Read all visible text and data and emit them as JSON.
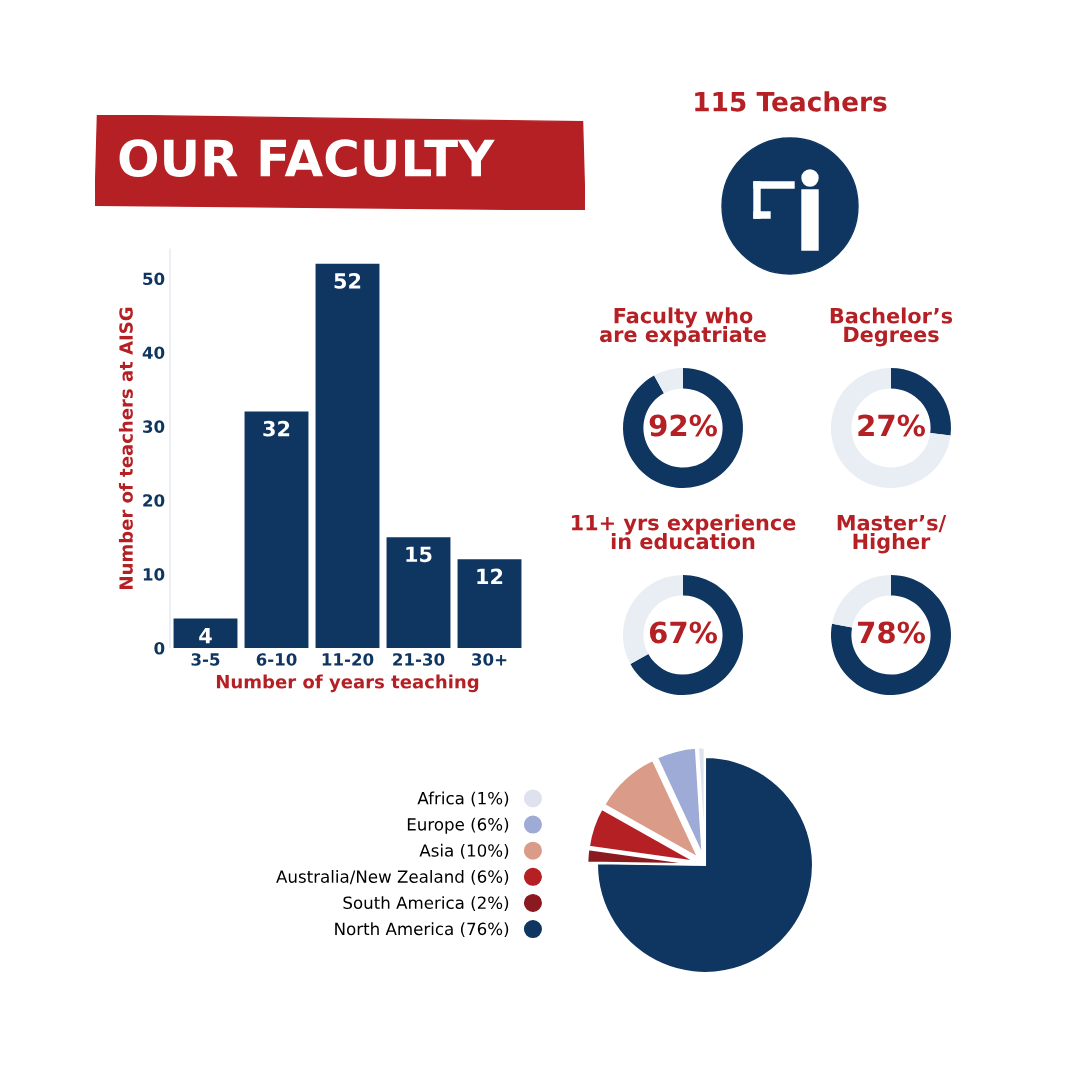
{
  "chart_data": [
    {
      "type": "bar",
      "title": "OUR FACULTY",
      "xlabel": "Number of years teaching",
      "ylabel": "Number of teachers at AISG",
      "categories": [
        "3-5",
        "6-10",
        "11-20",
        "21-30",
        "30+"
      ],
      "values": [
        4,
        32,
        52,
        15,
        12
      ],
      "color": "#0f3661",
      "ylim": [
        0,
        54
      ],
      "yticks": [
        0,
        10,
        20,
        30,
        40,
        50
      ],
      "data_labels": true,
      "grid": false,
      "legend": false
    },
    {
      "type": "other",
      "title": "115 Teachers"
    },
    {
      "type": "donut",
      "title": "Faculty who\nare expatriate",
      "categories": [
        null,
        null
      ],
      "values": [
        92,
        8
      ],
      "colors": [
        "#0f3661",
        "#e8eef4"
      ],
      "value_labels": [
        "92%",
        null
      ]
    },
    {
      "type": "donut",
      "title": "Bachelor’s\nDegrees",
      "categories": [
        null,
        null
      ],
      "values": [
        27,
        73
      ],
      "colors": [
        "#0f3661",
        "#e8eef4"
      ],
      "value_labels": [
        "27%",
        null
      ]
    },
    {
      "type": "donut",
      "title": "11+ yrs experience\nin education",
      "categories": [
        null,
        null
      ],
      "values": [
        67,
        33
      ],
      "colors": [
        "#0f3661",
        "#e8eef4"
      ],
      "value_labels": [
        "67%",
        null
      ]
    },
    {
      "type": "donut",
      "title": "Master’s/\nHigher",
      "categories": [
        null,
        null
      ],
      "values": [
        78,
        22
      ],
      "colors": [
        "#0f3661",
        "#e8eef4"
      ],
      "value_labels": [
        "78%",
        null
      ]
    },
    {
      "type": "pie",
      "categories": [
        "North America",
        "South America",
        "Australia/New Zealand",
        "Asia",
        "Europe",
        "Africa"
      ],
      "values": [
        76,
        2,
        6,
        10,
        6,
        1
      ],
      "colors": [
        "#0f3661",
        "#8a1a1f",
        "#b52025",
        "#da9c88",
        "#9eabd6",
        "#dde2ee"
      ],
      "value_labels": [
        "(76%)",
        "(2%)",
        "(6%)",
        "(10%)",
        "(6%)",
        "(1%)"
      ],
      "legend": "left"
    }
  ]
}
